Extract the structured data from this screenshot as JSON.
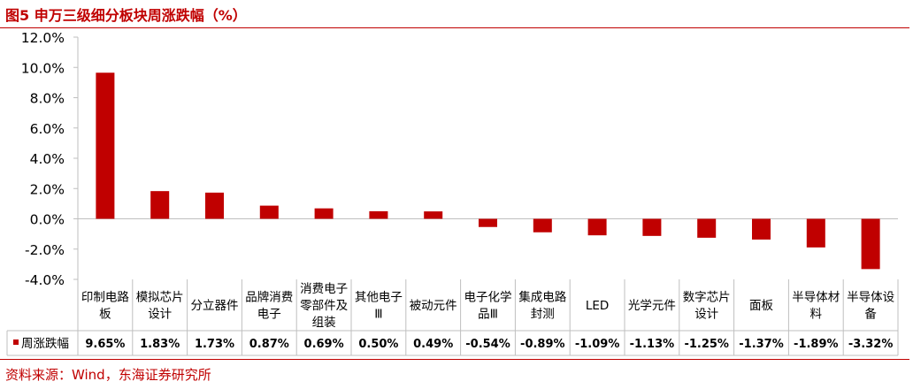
{
  "header": {
    "title": "图5  申万三级细分板块周涨跌幅（%）"
  },
  "footer": {
    "source": "资料来源：Wind，东海证券研究所"
  },
  "chart_data": {
    "type": "bar",
    "title": "图5  申万三级细分板块周涨跌幅（%）",
    "categories": [
      "印制电路板",
      "模拟芯片设计",
      "分立器件",
      "品牌消费电子",
      "消费电子零部件及组装",
      "其他电子Ⅲ",
      "被动元件",
      "电子化学品Ⅲ",
      "集成电路封测",
      "LED",
      "光学元件",
      "数字芯片设计",
      "面板",
      "半导体材料",
      "半导体设备"
    ],
    "series": [
      {
        "name": "周涨跌幅",
        "values": [
          9.65,
          1.83,
          1.73,
          0.87,
          0.69,
          0.5,
          0.49,
          -0.54,
          -0.89,
          -1.09,
          -1.13,
          -1.25,
          -1.37,
          -1.89,
          -3.32
        ],
        "labels": [
          "9.65%",
          "1.83%",
          "1.73%",
          "0.87%",
          "0.69%",
          "0.50%",
          "0.49%",
          "-0.54%",
          "-0.89%",
          "-1.09%",
          "-1.13%",
          "-1.25%",
          "-1.37%",
          "-1.89%",
          "-3.32%"
        ]
      }
    ],
    "ylim": [
      -4,
      12
    ],
    "yticks": [
      "12.0%",
      "10.0%",
      "8.0%",
      "6.0%",
      "4.0%",
      "2.0%",
      "0.0%",
      "-2.0%",
      "-4.0%"
    ],
    "xlabel": "",
    "ylabel": "",
    "grid": false,
    "legend": "data-table",
    "bar_color": "#c00000"
  }
}
